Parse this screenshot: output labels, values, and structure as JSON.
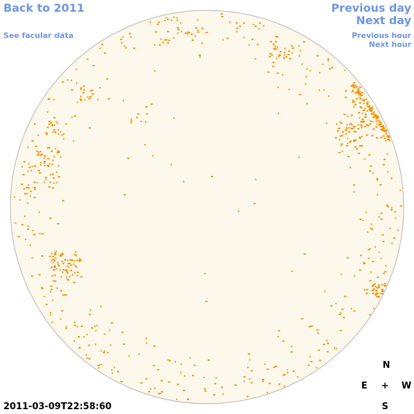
{
  "nav": {
    "back_label": "Back to 2011",
    "facular_label": "See facular data",
    "prev_day_label": "Previous day",
    "next_day_label": "Next day",
    "prev_hour_label": "Previous hour",
    "next_hour_label": "Next hour"
  },
  "timestamp": "2011-03-09T22:58:60",
  "compass": {
    "north": "N",
    "east": "E",
    "center": "+",
    "west": "W",
    "south": "S"
  },
  "colors": {
    "link": "#6f97e0",
    "disk_fill": "#fdf8ec",
    "disk_outline": "#b4b4b4",
    "feature": "#f29100"
  }
}
